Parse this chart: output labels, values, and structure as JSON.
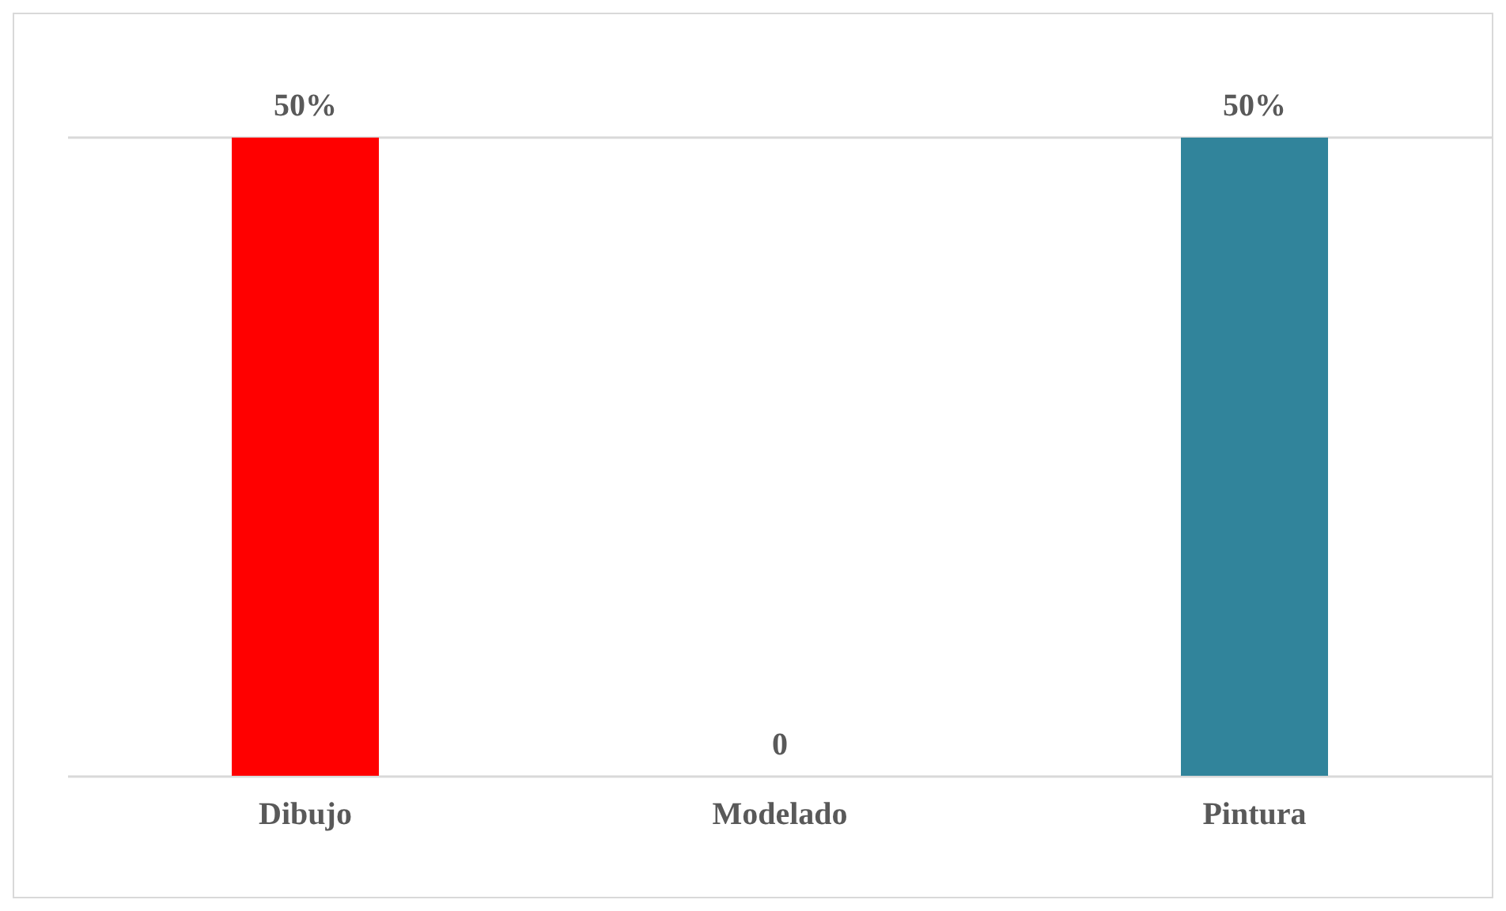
{
  "chart_data": {
    "type": "bar",
    "categories": [
      "Dibujo",
      "Modelado",
      "Pintura"
    ],
    "values": [
      50,
      0,
      50
    ],
    "colors": [
      "#ff0000",
      "#ffffff",
      "#31849b"
    ],
    "value_labels": [
      "50%",
      "0",
      "50%"
    ],
    "ylim": [
      0,
      50
    ],
    "grid": "y",
    "tick_labels": "x"
  }
}
